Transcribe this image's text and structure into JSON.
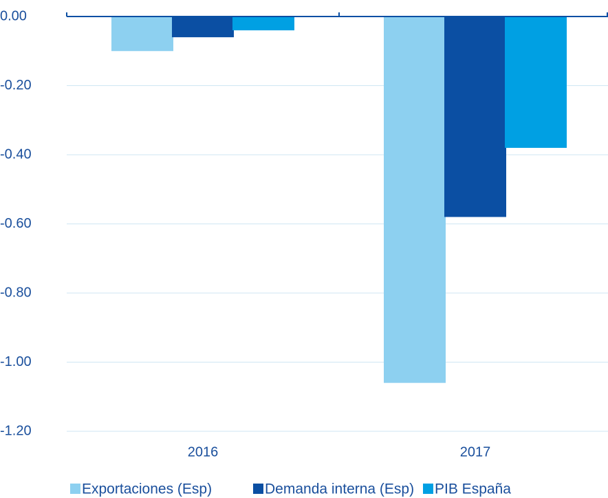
{
  "chart_data": {
    "type": "bar",
    "categories": [
      "2016",
      "2017"
    ],
    "series": [
      {
        "name": "Exportaciones (Esp)",
        "color": "#8dd0f0",
        "values": [
          -0.1,
          -1.06
        ]
      },
      {
        "name": "Demanda interna (Esp)",
        "color": "#0b4fa3",
        "values": [
          -0.06,
          -0.58
        ]
      },
      {
        "name": "PIB España",
        "color": "#00a0e3",
        "values": [
          -0.04,
          -0.38
        ]
      }
    ],
    "ylim": [
      -1.2,
      0
    ],
    "yticks": [
      {
        "value": 0,
        "label": "0.00"
      },
      {
        "value": -0.2,
        "label": "-0.20"
      },
      {
        "value": -0.4,
        "label": "-0.40"
      },
      {
        "value": -0.6,
        "label": "-0.60"
      },
      {
        "value": -0.8,
        "label": "-0.80"
      },
      {
        "value": -1.0,
        "label": "-1.00"
      },
      {
        "value": -1.2,
        "label": "-1.20"
      }
    ],
    "grid": true,
    "legend": "bottom"
  }
}
